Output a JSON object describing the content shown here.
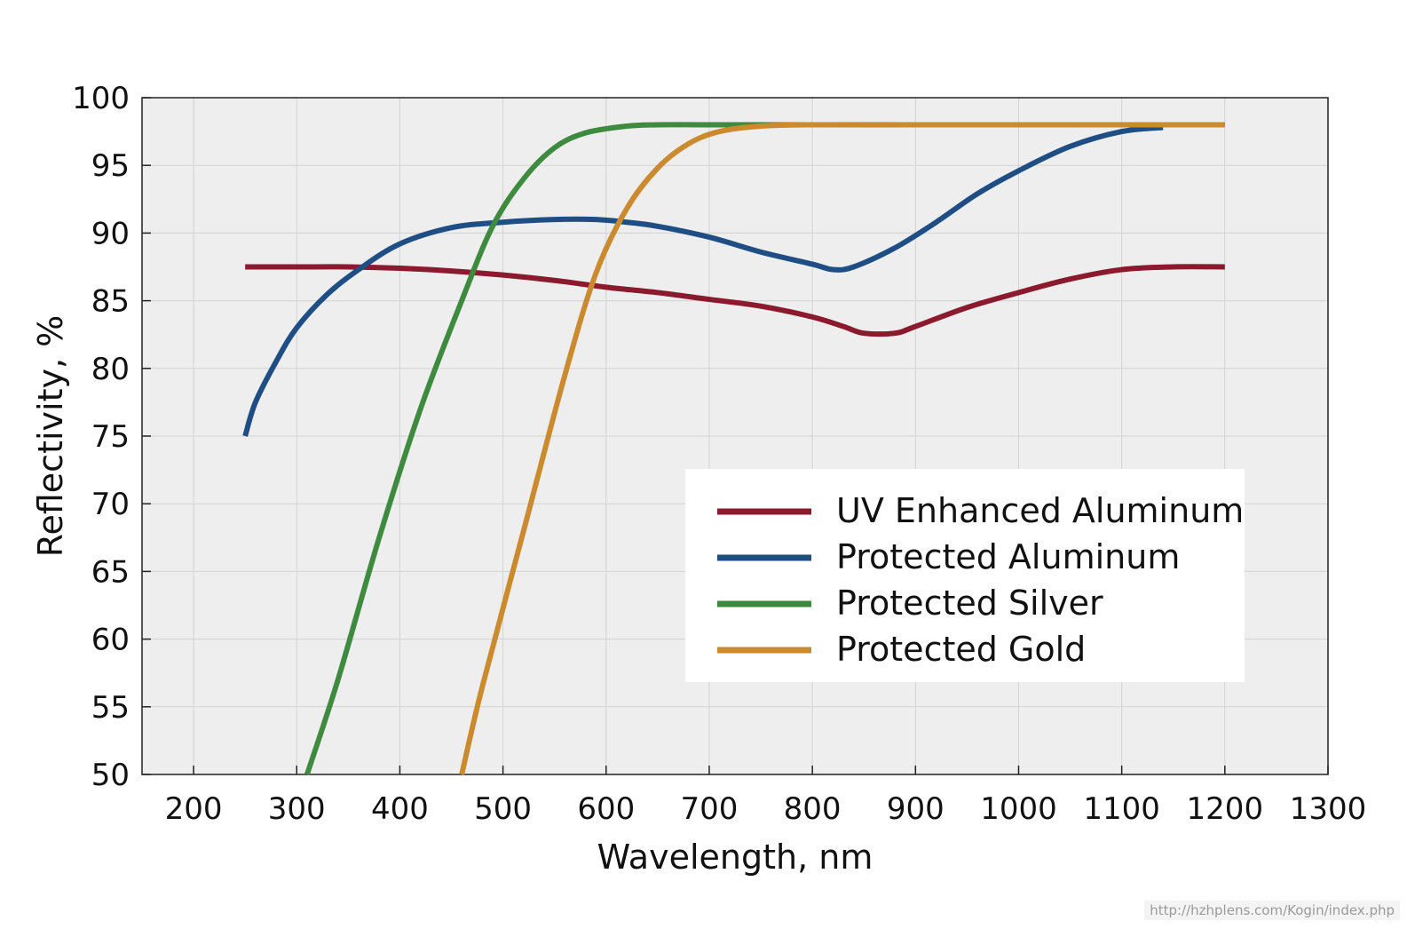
{
  "chart_data": {
    "type": "line",
    "title": "",
    "xlabel": "Wavelength, nm",
    "ylabel": "Reflectivity, %",
    "xlim": [
      150,
      1300
    ],
    "ylim": [
      50,
      100
    ],
    "xticks": [
      200,
      300,
      400,
      500,
      600,
      700,
      800,
      900,
      1000,
      1100,
      1200,
      1300
    ],
    "yticks": [
      50,
      55,
      60,
      65,
      70,
      75,
      80,
      85,
      90,
      95,
      100
    ],
    "grid": true,
    "legend_position": "lower-right",
    "series": [
      {
        "name": "UV Enhanced Aluminum",
        "color": "#8b1a2f",
        "points": [
          [
            250,
            87.5
          ],
          [
            300,
            87.5
          ],
          [
            350,
            87.5
          ],
          [
            400,
            87.4
          ],
          [
            450,
            87.2
          ],
          [
            500,
            86.9
          ],
          [
            550,
            86.5
          ],
          [
            600,
            86.0
          ],
          [
            650,
            85.6
          ],
          [
            700,
            85.1
          ],
          [
            750,
            84.6
          ],
          [
            800,
            83.8
          ],
          [
            830,
            83.1
          ],
          [
            850,
            82.6
          ],
          [
            880,
            82.6
          ],
          [
            900,
            83.1
          ],
          [
            950,
            84.5
          ],
          [
            1000,
            85.6
          ],
          [
            1050,
            86.6
          ],
          [
            1100,
            87.3
          ],
          [
            1150,
            87.5
          ],
          [
            1200,
            87.5
          ]
        ]
      },
      {
        "name": "Protected Aluminum",
        "color": "#1f4e84",
        "points": [
          [
            250,
            75.0
          ],
          [
            260,
            77.5
          ],
          [
            280,
            80.5
          ],
          [
            300,
            83.0
          ],
          [
            330,
            85.5
          ],
          [
            360,
            87.3
          ],
          [
            400,
            89.2
          ],
          [
            450,
            90.4
          ],
          [
            500,
            90.8
          ],
          [
            550,
            91.0
          ],
          [
            590,
            91.0
          ],
          [
            620,
            90.8
          ],
          [
            650,
            90.5
          ],
          [
            700,
            89.7
          ],
          [
            750,
            88.6
          ],
          [
            800,
            87.7
          ],
          [
            820,
            87.3
          ],
          [
            840,
            87.5
          ],
          [
            880,
            88.9
          ],
          [
            920,
            90.8
          ],
          [
            960,
            92.9
          ],
          [
            1000,
            94.6
          ],
          [
            1050,
            96.4
          ],
          [
            1100,
            97.5
          ],
          [
            1140,
            97.8
          ]
        ]
      },
      {
        "name": "Protected Silver",
        "color": "#3e8a3e",
        "points": [
          [
            310,
            50.0
          ],
          [
            340,
            57.0
          ],
          [
            380,
            67.5
          ],
          [
            420,
            77.0
          ],
          [
            460,
            85.0
          ],
          [
            490,
            90.5
          ],
          [
            520,
            94.0
          ],
          [
            550,
            96.3
          ],
          [
            580,
            97.4
          ],
          [
            620,
            97.9
          ],
          [
            650,
            98.0
          ],
          [
            700,
            98.0
          ],
          [
            800,
            98.0
          ],
          [
            900,
            98.0
          ],
          [
            1000,
            98.0
          ],
          [
            1100,
            98.0
          ],
          [
            1200,
            98.0
          ]
        ]
      },
      {
        "name": "Protected Gold",
        "color": "#cc8a2e",
        "points": [
          [
            460,
            50.0
          ],
          [
            480,
            56.5
          ],
          [
            520,
            68.0
          ],
          [
            560,
            79.5
          ],
          [
            590,
            87.0
          ],
          [
            620,
            91.8
          ],
          [
            650,
            94.8
          ],
          [
            680,
            96.6
          ],
          [
            710,
            97.5
          ],
          [
            750,
            97.9
          ],
          [
            800,
            98.0
          ],
          [
            900,
            98.0
          ],
          [
            1000,
            98.0
          ],
          [
            1100,
            98.0
          ],
          [
            1200,
            98.0
          ]
        ]
      }
    ]
  },
  "watermark": "http://hzhplens.com/Kogin/index.php"
}
